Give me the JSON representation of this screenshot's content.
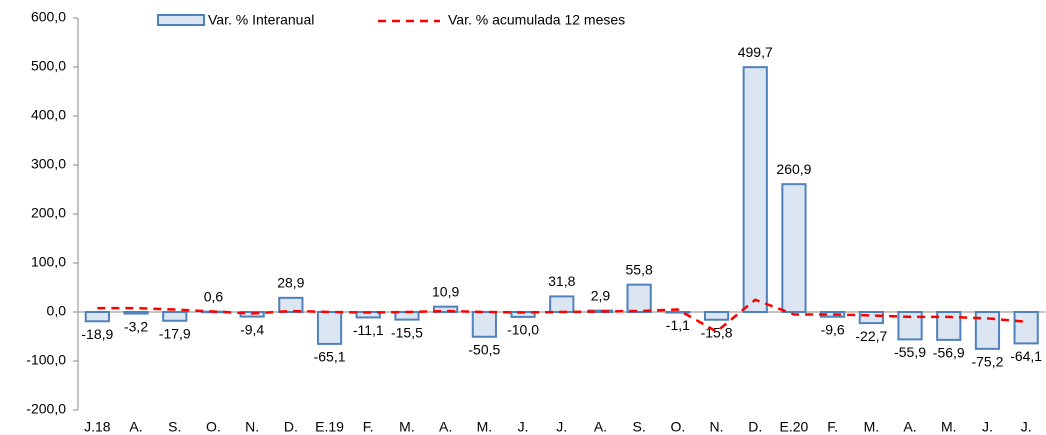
{
  "chart_data": {
    "type": "bar",
    "categories": [
      "J.18",
      "A.",
      "S.",
      "O.",
      "N.",
      "D.",
      "E.19",
      "F.",
      "M.",
      "A.",
      "M.",
      "J.",
      "J.",
      "A.",
      "S.",
      "O.",
      "N.",
      "D.",
      "E.20",
      "F.",
      "M.",
      "A.",
      "M.",
      "J.",
      "J."
    ],
    "series": [
      {
        "name": "Var. % Interanual",
        "type": "bar",
        "color": "#dce6f2",
        "stroke": "#4f81bd",
        "values": [
          -18.9,
          -3.2,
          -17.9,
          0.6,
          -9.4,
          28.9,
          -65.1,
          -11.1,
          -15.5,
          10.9,
          -50.5,
          -10.0,
          31.8,
          2.9,
          55.8,
          -1.1,
          -15.8,
          499.7,
          260.9,
          -9.6,
          -22.7,
          -55.9,
          -56.9,
          -75.2,
          -64.1
        ],
        "value_labels": [
          "-18,9",
          "-3,2",
          "-17,9",
          "0,6",
          "-9,4",
          "28,9",
          "-65,1",
          "-11,1",
          "-15,5",
          "10,9",
          "-50,5",
          "-10,0",
          "31,8",
          "2,9",
          "55,8",
          "-1,1",
          "-15,8",
          "499,7",
          "260,9",
          "-9,6",
          "-22,7",
          "-55,9",
          "-56,9",
          "-75,2",
          "-64,1"
        ]
      },
      {
        "name": "Var. % acumulada 12 meses",
        "type": "line",
        "color": "#ff0000",
        "values": [
          8,
          8,
          5,
          1,
          -3,
          2,
          0,
          -1,
          0,
          2,
          0,
          -1,
          0,
          1,
          2,
          5,
          -40,
          25,
          -5,
          -5,
          -7,
          -10,
          -10,
          -13,
          -20
        ]
      }
    ],
    "ylim": [
      -200,
      600
    ],
    "yticks": [
      {
        "value": -200,
        "label": "-200,0"
      },
      {
        "value": -100,
        "label": "-100,0"
      },
      {
        "value": 0,
        "label": "0,0"
      },
      {
        "value": 100,
        "label": "100,0"
      },
      {
        "value": 200,
        "label": "200,0"
      },
      {
        "value": 300,
        "label": "300,0"
      },
      {
        "value": 400,
        "label": "400,0"
      },
      {
        "value": 500,
        "label": "500,0"
      },
      {
        "value": 600,
        "label": "600,0"
      }
    ]
  }
}
